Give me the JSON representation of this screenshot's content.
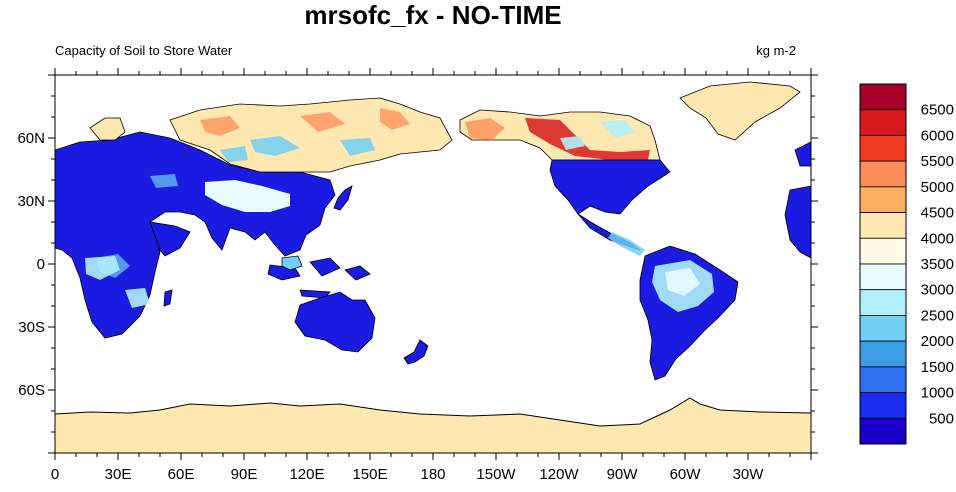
{
  "title": "mrsofc_fx - NO-TIME",
  "subtitle_left": "Capacity of Soil to Store Water",
  "subtitle_right": "kg m-2",
  "lat_labels": [
    "60N",
    "30N",
    "0",
    "30S",
    "60S"
  ],
  "lon_labels": [
    "0",
    "30E",
    "60E",
    "90E",
    "120E",
    "150E",
    "180",
    "150W",
    "120W",
    "90W",
    "60W",
    "30W"
  ],
  "colorbar": {
    "labels": [
      "6500",
      "6000",
      "5500",
      "5000",
      "4500",
      "4000",
      "3500",
      "3000",
      "2500",
      "2000",
      "1500",
      "1000",
      "500"
    ],
    "colors": [
      "#a50026",
      "#d7191c",
      "#f03b20",
      "#fc8d59",
      "#fdae61",
      "#fee8b0",
      "#fffbe6",
      "#e8fbff",
      "#b0f0fa",
      "#6fcff5",
      "#3d9ee8",
      "#2f6ff0",
      "#1a2ef0",
      "#1a00c8"
    ]
  },
  "colors": {
    "low_soil": "#1a1ae0",
    "ocean": "#ffffff",
    "antarctica": "#fee8b0"
  }
}
